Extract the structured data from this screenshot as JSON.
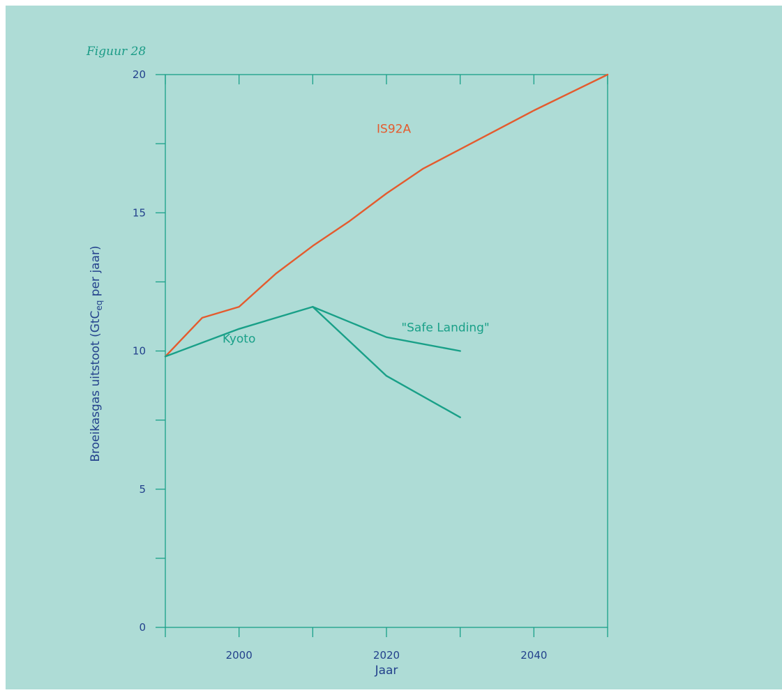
{
  "figure_label": "Figuur 28",
  "colors": {
    "background": "#aedcd6",
    "axis": "#19a088",
    "text": "#23418c",
    "figure_label": "#1a9b86",
    "is92a": "#e45b2e",
    "kyoto": "#19a088"
  },
  "chart_data": {
    "type": "line",
    "title": "",
    "xlabel": "Jaar",
    "ylabel_main": "Broeikasgas uitstoot (GtC",
    "ylabel_sub": "eq",
    "ylabel_tail": " per jaar)",
    "xlim": [
      1990,
      2050
    ],
    "ylim": [
      0,
      20
    ],
    "x_ticks": [
      1990,
      2000,
      2010,
      2020,
      2030,
      2040,
      2050
    ],
    "x_tick_labels": [
      {
        "value": 2000,
        "label": "2000"
      },
      {
        "value": 2020,
        "label": "2020"
      },
      {
        "value": 2040,
        "label": "2040"
      }
    ],
    "y_ticks": [
      0,
      2.5,
      5,
      7.5,
      10,
      12.5,
      15,
      17.5,
      20
    ],
    "y_tick_labels": [
      {
        "value": 0,
        "label": "0"
      },
      {
        "value": 5,
        "label": "5"
      },
      {
        "value": 10,
        "label": "10"
      },
      {
        "value": 15,
        "label": "15"
      },
      {
        "value": 20,
        "label": "20"
      }
    ],
    "grid": false,
    "series": [
      {
        "name": "IS92A",
        "color_key": "is92a",
        "x": [
          1990,
          1995,
          2000,
          2005,
          2010,
          2015,
          2020,
          2025,
          2030,
          2040,
          2050
        ],
        "y": [
          9.8,
          11.2,
          11.6,
          12.8,
          13.8,
          14.7,
          15.7,
          16.6,
          17.3,
          18.7,
          20.0
        ]
      },
      {
        "name": "Kyoto",
        "color_key": "kyoto",
        "x": [
          1990,
          2000,
          2010
        ],
        "y": [
          9.8,
          10.8,
          11.6
        ]
      },
      {
        "name": "\"Safe Landing\"",
        "color_key": "kyoto",
        "x": [
          2010,
          2020,
          2030
        ],
        "y": [
          11.6,
          10.5,
          10.0
        ]
      },
      {
        "name": "",
        "color_key": "kyoto",
        "x": [
          2010,
          2020,
          2030
        ],
        "y": [
          11.6,
          9.1,
          7.6
        ]
      }
    ],
    "annotations": [
      {
        "text": "IS92A",
        "x": 2021,
        "y": 17.9,
        "color_key": "is92a"
      },
      {
        "text": "Kyoto",
        "x": 2000,
        "y": 10.3,
        "color_key": "kyoto"
      },
      {
        "text": "\"Safe Landing\"",
        "x": 2028,
        "y": 10.7,
        "color_key": "kyoto"
      }
    ]
  }
}
